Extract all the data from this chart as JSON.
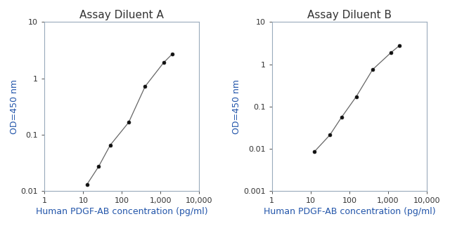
{
  "chart_A": {
    "title": "Assay Diluent A",
    "x": [
      12.5,
      25,
      50,
      150,
      400,
      1200,
      2000
    ],
    "y": [
      0.013,
      0.027,
      0.065,
      0.165,
      0.72,
      1.9,
      2.7
    ],
    "xlim": [
      1,
      10000
    ],
    "ylim": [
      0.01,
      10
    ],
    "yticks": [
      0.01,
      0.1,
      1,
      10
    ],
    "ytick_labels": [
      "0.01",
      "0.1",
      "1",
      "10"
    ],
    "xticks": [
      1,
      10,
      100,
      1000,
      10000
    ],
    "xtick_labels": [
      "1",
      "10",
      "100",
      "1,000",
      "10,000"
    ],
    "ylabel": "OD=450 nm",
    "xlabel": "Human PDGF-AB concentration (pg/ml)"
  },
  "chart_B": {
    "title": "Assay Diluent B",
    "x": [
      12.5,
      31.25,
      62.5,
      150,
      400,
      1200,
      2000
    ],
    "y": [
      0.0085,
      0.021,
      0.055,
      0.17,
      0.75,
      1.9,
      2.8
    ],
    "xlim": [
      1,
      10000
    ],
    "ylim": [
      0.001,
      10
    ],
    "yticks": [
      0.001,
      0.01,
      0.1,
      1,
      10
    ],
    "ytick_labels": [
      "0.001",
      "0.01",
      "0.1",
      "1",
      "10"
    ],
    "xticks": [
      1,
      10,
      100,
      1000,
      10000
    ],
    "xtick_labels": [
      "1",
      "10",
      "100",
      "1,000",
      "10,000"
    ],
    "ylabel": "OD=450 nm",
    "xlabel": "Human PDGF-AB concentration (pg/ml)"
  },
  "line_color": "#666666",
  "marker_color": "#111111",
  "border_color": "#99aabb",
  "title_color": "#333333",
  "tick_color": "#333333",
  "label_color": "#2255aa",
  "bg_color": "#ffffff",
  "fig_bg": "#ffffff",
  "title_fontsize": 11,
  "label_fontsize": 9,
  "tick_fontsize": 8
}
